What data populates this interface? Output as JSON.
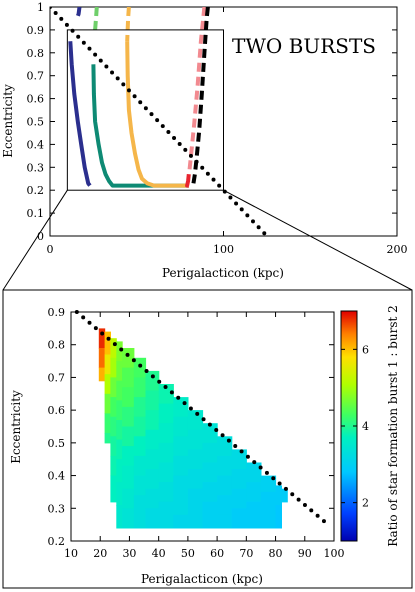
{
  "chart_data": [
    {
      "type": "line",
      "annotation": "TWO BURSTS",
      "xlabel": "Perigalacticon (kpc)",
      "ylabel": "Eccentricity",
      "xlim": [
        0,
        200
      ],
      "ylim": [
        0,
        1
      ],
      "x_ticks": [
        "0",
        "100",
        "200"
      ],
      "y_ticks": [
        "0",
        "0.1",
        "0.2",
        "0.3",
        "0.4",
        "0.5",
        "0.6",
        "0.7",
        "0.8",
        "0.9",
        "1"
      ],
      "zoom_box": {
        "x": [
          10,
          100
        ],
        "y": [
          0.2,
          0.9
        ]
      },
      "series": [
        {
          "color": "#2b2f8e",
          "style": "solid",
          "x": [
            11.7,
            12.5,
            14,
            16,
            18,
            20,
            22,
            23
          ],
          "y": [
            0.85,
            0.75,
            0.62,
            0.5,
            0.4,
            0.3,
            0.23,
            0.22
          ]
        },
        {
          "color": "#2b2f8e",
          "style": "dashed",
          "x": [
            17,
            16.5,
            15.5
          ],
          "y": [
            1.0,
            0.97,
            0.95
          ]
        },
        {
          "color": "#0e8a74",
          "style": "solid",
          "x": [
            25,
            25.3,
            26,
            28,
            30,
            32,
            34,
            36,
            80
          ],
          "y": [
            0.75,
            0.62,
            0.5,
            0.4,
            0.32,
            0.27,
            0.24,
            0.22,
            0.22
          ]
        },
        {
          "color": "#6fcf6a",
          "style": "dashed",
          "x": [
            27,
            26.5,
            26
          ],
          "y": [
            1.0,
            0.95,
            0.9
          ]
        },
        {
          "color": "#f5b64a",
          "style": "solid",
          "x": [
            44.5,
            44.8,
            45.5,
            47,
            49,
            51,
            53,
            56,
            60,
            80
          ],
          "y": [
            0.85,
            0.7,
            0.55,
            0.45,
            0.36,
            0.29,
            0.25,
            0.23,
            0.22,
            0.22
          ]
        },
        {
          "color": "#f5b64a",
          "style": "dashed",
          "x": [
            45.5,
            45,
            44.5
          ],
          "y": [
            1.0,
            0.95,
            0.85
          ]
        },
        {
          "color": "#e8242f",
          "style": "solid",
          "x": [
            80,
            79.6,
            79.3,
            79,
            80
          ],
          "y": [
            0.27,
            0.24,
            0.23,
            0.22,
            0.22
          ]
        },
        {
          "color": "#f28a90",
          "style": "dashed",
          "x": [
            89,
            87,
            85,
            83,
            81,
            80.3
          ],
          "y": [
            1.0,
            0.85,
            0.65,
            0.48,
            0.33,
            0.28
          ]
        },
        {
          "color": "#000000",
          "style": "dashed",
          "x": [
            91,
            90.3,
            89,
            87.5,
            86,
            84.5,
            83.5,
            82.5
          ],
          "y": [
            1.0,
            0.95,
            0.8,
            0.62,
            0.46,
            0.34,
            0.27,
            0.22
          ]
        },
        {
          "color": "#000000",
          "style": "dotted",
          "x": [
            0,
            25,
            50,
            75,
            100,
            125
          ],
          "y": [
            1.0,
            0.8,
            0.6,
            0.4,
            0.2,
            0.0
          ]
        }
      ]
    },
    {
      "type": "heatmap",
      "xlabel": "Perigalacticon (kpc)",
      "ylabel": "Eccentricity",
      "xlim": [
        10,
        100
      ],
      "ylim": [
        0.2,
        0.9
      ],
      "x_ticks": [
        "10",
        "20",
        "30",
        "40",
        "50",
        "60",
        "70",
        "80",
        "90",
        "100"
      ],
      "y_ticks": [
        "0.2",
        "0.3",
        "0.4",
        "0.5",
        "0.6",
        "0.7",
        "0.8",
        "0.9"
      ],
      "colorbar": {
        "label": "Ratio of star formation burst 1 : burst 2",
        "ticks": [
          "2",
          "4",
          "6"
        ],
        "range": [
          1,
          7
        ]
      },
      "boundary_line": {
        "x": [
          12,
          98
        ],
        "y": [
          0.9,
          0.25
        ]
      },
      "columns": [
        {
          "x0": 19.5,
          "x1": 21.5,
          "cells": [
            [
              0.79,
              0.85,
              6.8
            ],
            [
              0.73,
              0.79,
              6.5
            ],
            [
              0.69,
              0.73,
              6.1
            ]
          ]
        },
        {
          "x0": 21.5,
          "x1": 23.5,
          "cells": [
            [
              0.77,
              0.84,
              6.0
            ],
            [
              0.71,
              0.77,
              5.6
            ],
            [
              0.65,
              0.71,
              5.1
            ],
            [
              0.59,
              0.65,
              4.6
            ],
            [
              0.53,
              0.59,
              4.2
            ],
            [
              0.5,
              0.53,
              4.0
            ]
          ]
        },
        {
          "x0": 23.5,
          "x1": 25.5,
          "cells": [
            [
              0.76,
              0.82,
              5.2
            ],
            [
              0.7,
              0.76,
              5.0
            ],
            [
              0.64,
              0.7,
              4.6
            ],
            [
              0.58,
              0.64,
              4.3
            ],
            [
              0.52,
              0.58,
              4.1
            ],
            [
              0.46,
              0.52,
              3.9
            ],
            [
              0.4,
              0.46,
              3.8
            ],
            [
              0.32,
              0.4,
              3.7
            ]
          ]
        },
        {
          "x0": 25.5,
          "x1": 27.5,
          "cells": [
            [
              0.75,
              0.81,
              4.7
            ],
            [
              0.69,
              0.75,
              4.6
            ],
            [
              0.63,
              0.69,
              4.4
            ],
            [
              0.57,
              0.63,
              4.2
            ],
            [
              0.51,
              0.57,
              4.0
            ],
            [
              0.45,
              0.51,
              3.8
            ],
            [
              0.38,
              0.45,
              3.7
            ],
            [
              0.31,
              0.38,
              3.6
            ],
            [
              0.24,
              0.31,
              3.5
            ]
          ]
        },
        {
          "x0": 27.5,
          "x1": 31.5,
          "cells": [
            [
              0.73,
              0.79,
              4.6
            ],
            [
              0.67,
              0.73,
              4.4
            ],
            [
              0.61,
              0.67,
              4.3
            ],
            [
              0.55,
              0.61,
              4.1
            ],
            [
              0.49,
              0.55,
              3.9
            ],
            [
              0.43,
              0.49,
              3.7
            ],
            [
              0.36,
              0.43,
              3.6
            ],
            [
              0.3,
              0.36,
              3.5
            ],
            [
              0.24,
              0.3,
              3.4
            ]
          ]
        },
        {
          "x0": 31.5,
          "x1": 35.5,
          "cells": [
            [
              0.7,
              0.76,
              4.3
            ],
            [
              0.64,
              0.7,
              4.2
            ],
            [
              0.58,
              0.64,
              4.0
            ],
            [
              0.52,
              0.58,
              3.9
            ],
            [
              0.46,
              0.52,
              3.7
            ],
            [
              0.4,
              0.46,
              3.5
            ],
            [
              0.34,
              0.4,
              3.4
            ],
            [
              0.28,
              0.34,
              3.3
            ],
            [
              0.24,
              0.28,
              3.3
            ]
          ]
        },
        {
          "x0": 35.5,
          "x1": 40,
          "cells": [
            [
              0.66,
              0.72,
              4.0
            ],
            [
              0.6,
              0.66,
              3.9
            ],
            [
              0.54,
              0.6,
              3.8
            ],
            [
              0.48,
              0.54,
              3.6
            ],
            [
              0.42,
              0.48,
              3.5
            ],
            [
              0.36,
              0.42,
              3.4
            ],
            [
              0.3,
              0.36,
              3.3
            ],
            [
              0.24,
              0.3,
              3.2
            ]
          ]
        },
        {
          "x0": 40,
          "x1": 45,
          "cells": [
            [
              0.62,
              0.68,
              3.8
            ],
            [
              0.56,
              0.62,
              3.7
            ],
            [
              0.5,
              0.56,
              3.6
            ],
            [
              0.44,
              0.5,
              3.5
            ],
            [
              0.38,
              0.44,
              3.4
            ],
            [
              0.32,
              0.38,
              3.3
            ],
            [
              0.24,
              0.32,
              3.2
            ]
          ]
        },
        {
          "x0": 45,
          "x1": 50,
          "cells": [
            [
              0.58,
              0.64,
              3.6
            ],
            [
              0.52,
              0.58,
              3.5
            ],
            [
              0.46,
              0.52,
              3.4
            ],
            [
              0.4,
              0.46,
              3.3
            ],
            [
              0.34,
              0.4,
              3.2
            ],
            [
              0.28,
              0.34,
              3.2
            ],
            [
              0.24,
              0.28,
              3.1
            ]
          ]
        },
        {
          "x0": 50,
          "x1": 55,
          "cells": [
            [
              0.54,
              0.6,
              3.5
            ],
            [
              0.48,
              0.54,
              3.4
            ],
            [
              0.42,
              0.48,
              3.3
            ],
            [
              0.36,
              0.42,
              3.2
            ],
            [
              0.3,
              0.36,
              3.1
            ],
            [
              0.24,
              0.3,
              3.1
            ]
          ]
        },
        {
          "x0": 55,
          "x1": 60,
          "cells": [
            [
              0.5,
              0.56,
              3.4
            ],
            [
              0.44,
              0.5,
              3.3
            ],
            [
              0.38,
              0.44,
              3.2
            ],
            [
              0.32,
              0.38,
              3.1
            ],
            [
              0.24,
              0.32,
              3.0
            ]
          ]
        },
        {
          "x0": 60,
          "x1": 65,
          "cells": [
            [
              0.46,
              0.52,
              3.3
            ],
            [
              0.4,
              0.46,
              3.2
            ],
            [
              0.34,
              0.4,
              3.1
            ],
            [
              0.28,
              0.34,
              3.0
            ],
            [
              0.24,
              0.28,
              3.0
            ]
          ]
        },
        {
          "x0": 65,
          "x1": 70,
          "cells": [
            [
              0.42,
              0.48,
              3.2
            ],
            [
              0.36,
              0.42,
              3.1
            ],
            [
              0.3,
              0.36,
              3.0
            ],
            [
              0.24,
              0.3,
              2.9
            ]
          ]
        },
        {
          "x0": 70,
          "x1": 75,
          "cells": [
            [
              0.38,
              0.44,
              3.1
            ],
            [
              0.32,
              0.38,
              3.0
            ],
            [
              0.24,
              0.32,
              2.9
            ]
          ]
        },
        {
          "x0": 75,
          "x1": 80,
          "cells": [
            [
              0.35,
              0.4,
              3.0
            ],
            [
              0.28,
              0.35,
              2.9
            ],
            [
              0.24,
              0.28,
              2.9
            ]
          ]
        },
        {
          "x0": 80,
          "x1": 82,
          "cells": [
            [
              0.31,
              0.37,
              2.9
            ],
            [
              0.24,
              0.31,
              2.8
            ]
          ]
        },
        {
          "x0": 82,
          "x1": 84,
          "cells": [
            [
              0.32,
              0.36,
              2.9
            ]
          ]
        }
      ]
    }
  ]
}
